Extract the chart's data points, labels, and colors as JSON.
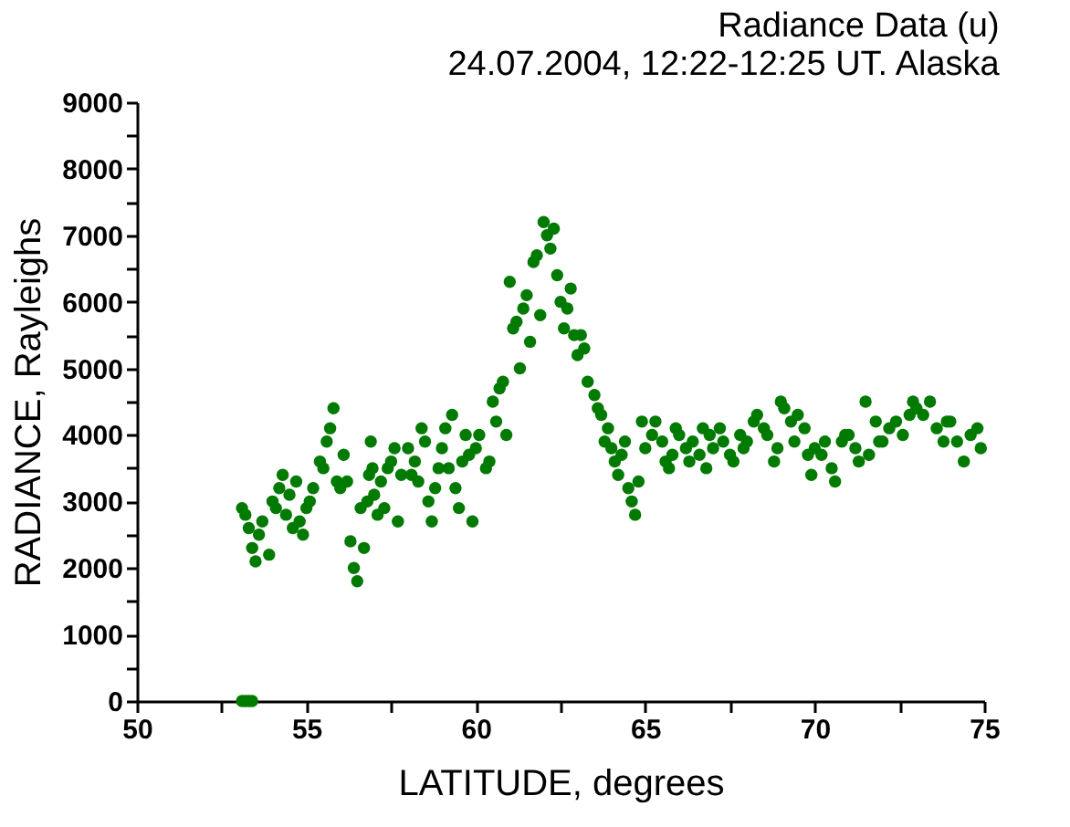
{
  "chart_data": {
    "type": "scatter",
    "title": [
      "Radiance Data (u)",
      "24.07.2004, 12:22-12:25 UT.  Alaska"
    ],
    "xlabel": "LATITUDE, degrees",
    "ylabel": "RADIANCE, Rayleighs",
    "xlim": [
      50,
      75
    ],
    "ylim": [
      0,
      9000
    ],
    "xticks": [
      50,
      {
        "value": 52.5,
        "label": null
      },
      55,
      {
        "value": 57.5,
        "label": null
      },
      60,
      {
        "value": 62.5,
        "label": null
      },
      65,
      {
        "value": 67.5,
        "label": null
      },
      70,
      {
        "value": 72.5,
        "label": null
      },
      75
    ],
    "yticks": [
      0,
      {
        "value": 500,
        "label": null
      },
      1000,
      {
        "value": 1500,
        "label": null
      },
      2000,
      {
        "value": 2500,
        "label": null
      },
      3000,
      {
        "value": 3500,
        "label": null
      },
      4000,
      {
        "value": 4500,
        "label": null
      },
      5000,
      {
        "value": 5500,
        "label": null
      },
      6000,
      {
        "value": 6500,
        "label": null
      },
      7000,
      {
        "value": 7500,
        "label": null
      },
      8000,
      {
        "value": 8500,
        "label": null
      },
      9000
    ],
    "grid": false,
    "legend": false,
    "marker": "circle",
    "series": [
      {
        "color": "#007a00",
        "x": [
          53.1,
          53.2,
          53.3,
          53.4,
          53.1,
          53.2,
          53.3,
          53.4,
          53.5,
          53.6,
          53.7,
          53.9,
          54.0,
          54.1,
          54.2,
          54.3,
          54.4,
          54.5,
          54.6,
          54.7,
          54.8,
          54.9,
          55.0,
          55.1,
          55.2,
          55.4,
          55.5,
          55.6,
          55.7,
          55.8,
          55.9,
          56.0,
          56.1,
          56.2,
          56.3,
          56.4,
          56.5,
          56.6,
          56.7,
          56.8,
          56.85,
          56.9,
          56.95,
          57.0,
          57.1,
          57.2,
          57.3,
          57.4,
          57.5,
          57.6,
          57.7,
          57.8,
          58.0,
          58.1,
          58.2,
          58.3,
          58.4,
          58.5,
          58.6,
          58.7,
          58.8,
          58.9,
          59.0,
          59.1,
          59.2,
          59.3,
          59.4,
          59.5,
          59.6,
          59.7,
          59.8,
          59.9,
          60.0,
          60.1,
          60.3,
          60.4,
          60.5,
          60.6,
          60.7,
          60.8,
          60.9,
          61.0,
          61.1,
          61.2,
          61.3,
          61.4,
          61.5,
          61.6,
          61.7,
          61.8,
          61.9,
          62.0,
          62.1,
          62.2,
          62.3,
          62.4,
          62.5,
          62.6,
          62.7,
          62.8,
          62.9,
          63.0,
          63.1,
          63.2,
          63.3,
          63.5,
          63.6,
          63.7,
          63.8,
          63.9,
          64.0,
          64.1,
          64.2,
          64.3,
          64.4,
          64.5,
          64.6,
          64.7,
          64.8,
          64.9,
          65.0,
          65.2,
          65.3,
          65.5,
          65.6,
          65.7,
          65.8,
          65.9,
          66.0,
          66.2,
          66.3,
          66.4,
          66.6,
          66.7,
          66.8,
          66.9,
          67.0,
          67.2,
          67.3,
          67.5,
          67.6,
          67.8,
          67.9,
          68.0,
          68.2,
          68.3,
          68.5,
          68.6,
          68.8,
          68.9,
          69.0,
          69.1,
          69.3,
          69.4,
          69.5,
          69.7,
          69.8,
          69.9,
          70.0,
          70.2,
          70.3,
          70.5,
          70.6,
          70.8,
          70.9,
          71.0,
          71.2,
          71.3,
          71.5,
          71.6,
          71.8,
          71.9,
          72.0,
          72.2,
          72.4,
          72.6,
          72.8,
          72.9,
          73.0,
          73.2,
          73.4,
          73.6,
          73.8,
          73.9,
          74.0,
          74.2,
          74.4,
          74.6,
          74.8,
          74.9
        ],
        "values": [
          0,
          0,
          0,
          0,
          2900,
          2800,
          2600,
          2300,
          2100,
          2500,
          2700,
          2200,
          3000,
          2900,
          3200,
          3400,
          2800,
          3100,
          2600,
          3300,
          2700,
          2500,
          2900,
          3000,
          3200,
          3600,
          3500,
          3900,
          4100,
          4400,
          3300,
          3200,
          3700,
          3300,
          2400,
          2000,
          1800,
          2900,
          2300,
          3000,
          3400,
          3900,
          3500,
          3100,
          2800,
          3300,
          2900,
          3500,
          3600,
          3800,
          2700,
          3400,
          3800,
          3400,
          3600,
          3300,
          4100,
          3900,
          3000,
          2700,
          3200,
          3500,
          3800,
          4100,
          3500,
          4300,
          3200,
          2900,
          3600,
          4000,
          3700,
          2700,
          3800,
          4000,
          3500,
          3600,
          4500,
          4200,
          4700,
          4800,
          4000,
          6300,
          5600,
          5700,
          5000,
          5900,
          6100,
          5400,
          6600,
          6700,
          5800,
          7200,
          7000,
          6800,
          7100,
          6400,
          6000,
          5600,
          5900,
          6200,
          5500,
          5200,
          5500,
          5300,
          4800,
          4600,
          4400,
          4300,
          3900,
          4100,
          3800,
          3600,
          3400,
          3700,
          3900,
          3200,
          3000,
          2800,
          3300,
          4200,
          3800,
          4000,
          4200,
          3900,
          3600,
          3500,
          3700,
          4100,
          4000,
          3800,
          3600,
          3900,
          3700,
          4100,
          3500,
          4000,
          3800,
          4100,
          3900,
          3700,
          3600,
          4000,
          3800,
          3900,
          4200,
          4300,
          4100,
          4000,
          3600,
          3800,
          4500,
          4400,
          4200,
          3900,
          4300,
          4100,
          3700,
          3400,
          3800,
          3700,
          3900,
          3500,
          3300,
          3900,
          4000,
          4000,
          3800,
          3600,
          4500,
          3700,
          4200,
          3900,
          3900,
          4100,
          4200,
          4000,
          4300,
          4500,
          4400,
          4300,
          4500,
          4100,
          3900,
          4200,
          4200,
          3900,
          3600,
          4000,
          4100,
          3800
        ]
      }
    ]
  }
}
